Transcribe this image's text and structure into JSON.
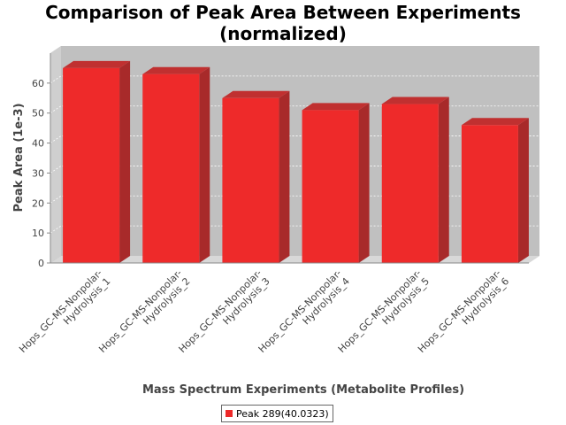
{
  "chart_data": {
    "type": "bar",
    "title_lines": [
      "Comparison of Peak Area Between Experiments",
      "(normalized)"
    ],
    "xlabel": "Mass Spectrum Experiments (Metabolite Profiles)",
    "ylabel": "Peak Area (1e-3)",
    "ylim": [
      0,
      70
    ],
    "yticks": [
      0,
      10,
      20,
      30,
      40,
      50,
      60
    ],
    "grid": true,
    "legend_position": "bottom",
    "categories": [
      [
        "Hops_GC-MS-Nonpolar-",
        "Hydrolysis_1"
      ],
      [
        "Hops_GC-MS-Nonpolar-",
        "Hydrolysis_2"
      ],
      [
        "Hops_GC-MS-Nonpolar-",
        "Hydrolysis_3"
      ],
      [
        "Hops_GC-MS-Nonpolar-",
        "Hydrolysis_4"
      ],
      [
        "Hops_GC-MS-Nonpolar-",
        "Hydrolysis_5"
      ],
      [
        "Hops_GC-MS-Nonpolar-",
        "Hydrolysis_6"
      ]
    ],
    "series": [
      {
        "name": "Peak 289(40.0323)",
        "color": "#ee2a2a",
        "values": [
          65,
          63,
          55,
          51,
          53,
          46
        ]
      }
    ]
  }
}
